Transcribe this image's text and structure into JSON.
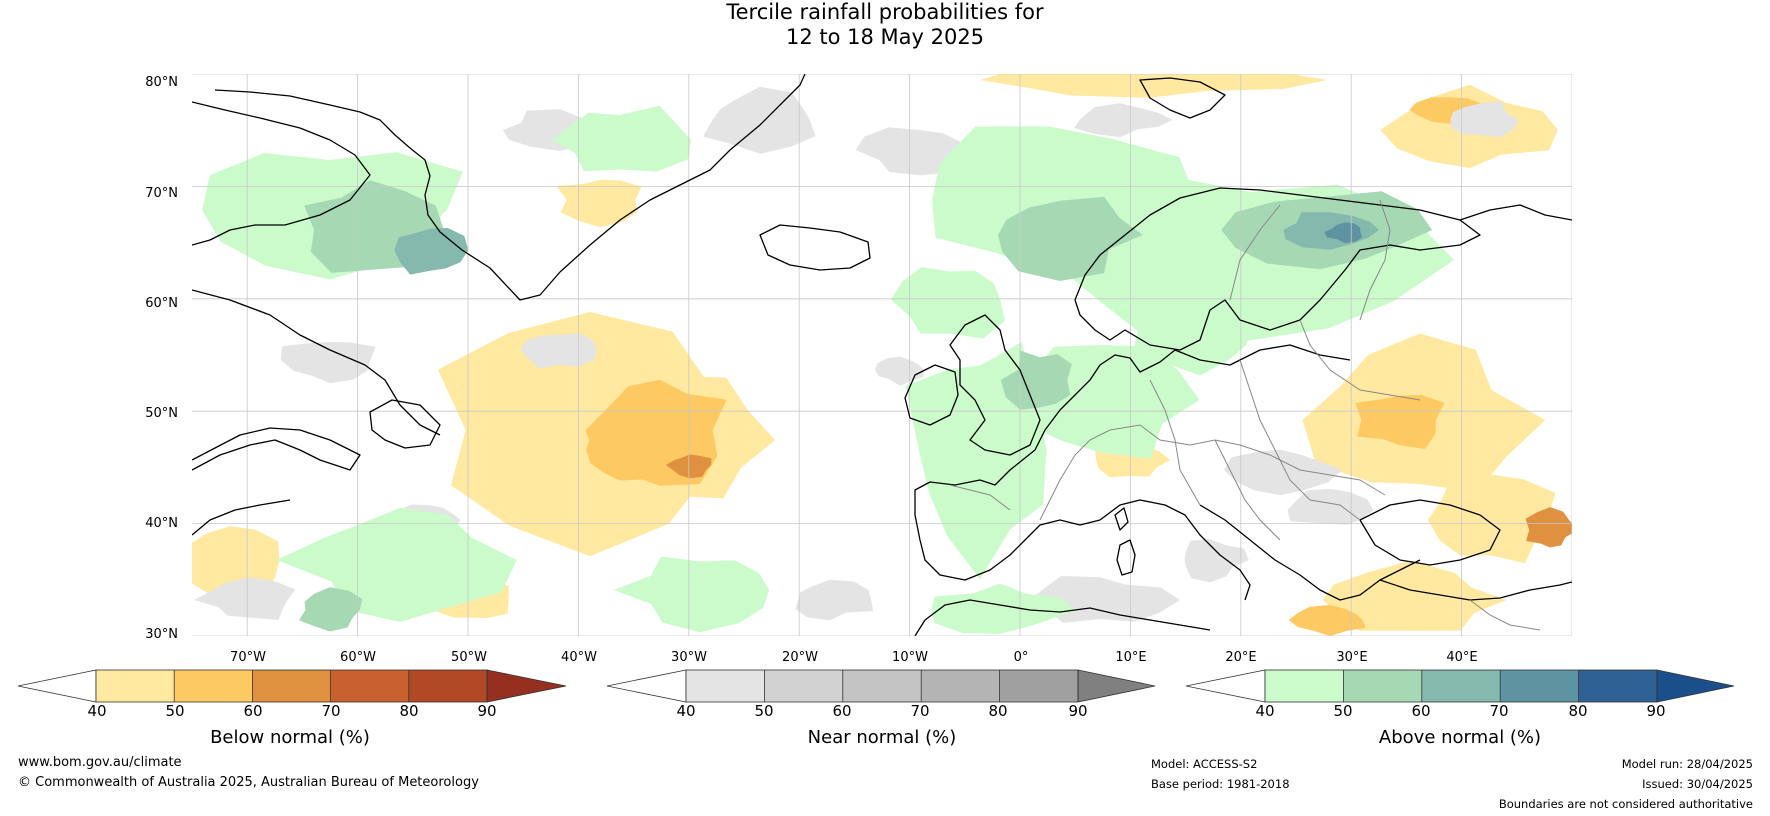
{
  "title": {
    "line1": "Tercile rainfall probabilities for",
    "line2": "12 to 18 May 2025"
  },
  "map": {
    "lat_labels": [
      "80°N",
      "70°N",
      "60°N",
      "50°N",
      "40°N",
      "30°N"
    ],
    "lon_labels": [
      "70°W",
      "60°W",
      "50°W",
      "40°W",
      "30°W",
      "20°W",
      "10°W",
      "0°",
      "10°E",
      "20°E",
      "30°E",
      "40°E"
    ],
    "extent": {
      "lon_min": -75,
      "lon_max": 50,
      "lat_min": 30,
      "lat_max": 80
    }
  },
  "colorbars": [
    {
      "id": "below",
      "label": "Below normal (%)",
      "ticks": [
        "40",
        "50",
        "60",
        "70",
        "80",
        "90"
      ],
      "colors": [
        "#ffffff",
        "#ffe9a0",
        "#fdc963",
        "#e0913f",
        "#c9612e",
        "#b14926",
        "#953021"
      ]
    },
    {
      "id": "near",
      "label": "Near normal (%)",
      "ticks": [
        "40",
        "50",
        "60",
        "70",
        "80",
        "90"
      ],
      "colors": [
        "#ffffff",
        "#e4e4e4",
        "#d2d2d2",
        "#c4c4c4",
        "#b4b4b4",
        "#a0a0a0",
        "#808080"
      ]
    },
    {
      "id": "above",
      "label": "Above normal (%)",
      "ticks": [
        "40",
        "50",
        "60",
        "70",
        "80",
        "90"
      ],
      "colors": [
        "#ffffff",
        "#cbfbcb",
        "#a6d8b4",
        "#86b9ae",
        "#5e93a1",
        "#2e6093",
        "#1a4f8a"
      ]
    }
  ],
  "footer": {
    "website": "www.bom.gov.au/climate",
    "copyright": "© Commonwealth of Australia 2025, Australian Bureau of Meteorology",
    "model": "Model: ACCESS-S2",
    "base_period": "Base period: 1981-2018",
    "model_run": "Model run: 28/04/2025",
    "issued": "Issued: 30/04/2025",
    "disclaimer": "Boundaries are not considered authoritative"
  },
  "palette": {
    "below_light": "#ffe9a0",
    "below_mid": "#fdc963",
    "below_dark": "#e0913f",
    "near_light": "#e4e4e4",
    "above_light": "#cbfbcb",
    "above_mid": "#a6d8b4",
    "above_dark": "#86b9ae",
    "above_darker": "#5e93a1"
  }
}
